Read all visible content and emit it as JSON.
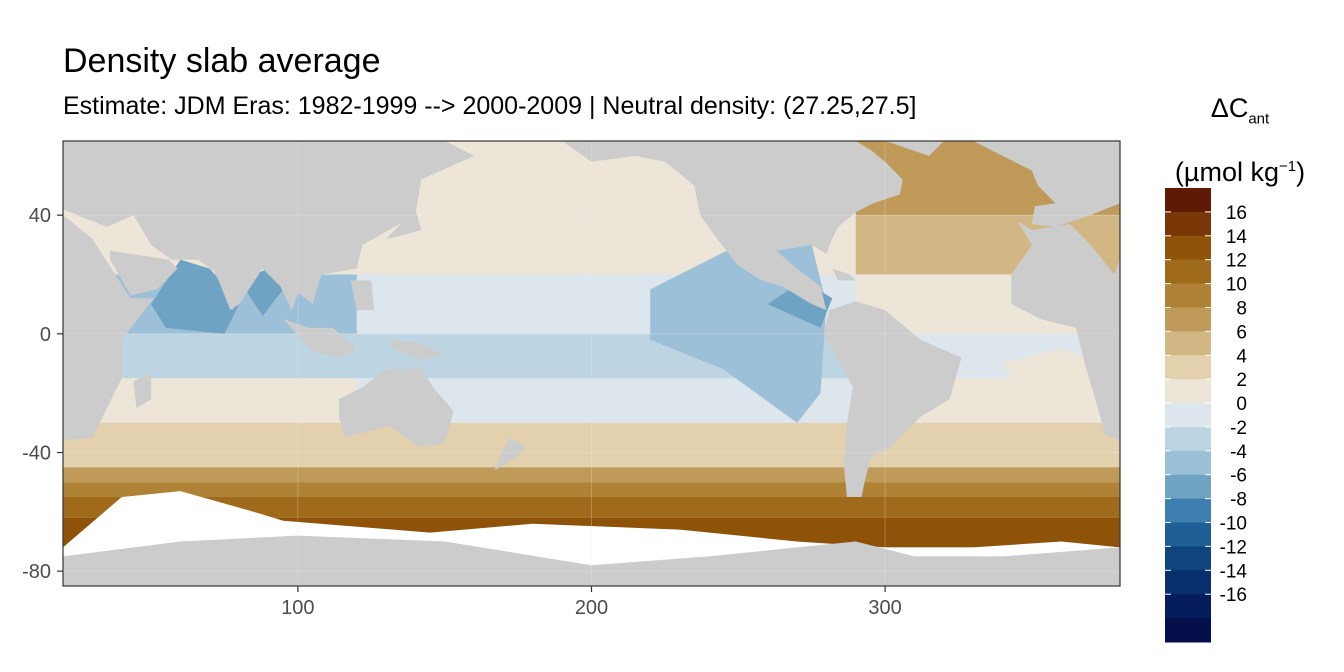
{
  "chart_data": {
    "type": "heatmap",
    "title": "Density slab average",
    "subtitle": "Estimate: JDM Eras: 1982-1999 --> 2000-2009 | Neutral density: (27.25,27.5]",
    "xlabel": "",
    "ylabel": "",
    "xlim": [
      20,
      380
    ],
    "ylim": [
      -85,
      65
    ],
    "x_ticks": [
      100,
      200,
      300
    ],
    "x_tick_labels": [
      "100",
      "200",
      "300"
    ],
    "y_ticks": [
      40,
      0,
      -40,
      -80
    ],
    "y_tick_labels": [
      "40",
      "0",
      "-40",
      "-80"
    ],
    "grid": true,
    "legend": {
      "position": "right",
      "title_main": "ΔC",
      "title_sub": "ant",
      "unit_prefix": "(µmol kg",
      "unit_sup": "−1",
      "unit_suffix": ")",
      "labels": [
        "16",
        "14",
        "12",
        "10",
        "8",
        "6",
        "4",
        "2",
        "0",
        "-2",
        "-4",
        "-6",
        "-8",
        "-10",
        "-12",
        "-14",
        "-16"
      ],
      "colors": [
        "#5e1a05",
        "#7a3606",
        "#8e5208",
        "#9f6a1a",
        "#b08236",
        "#c09a58",
        "#d2b684",
        "#e3d1ae",
        "#ede6d8",
        "#dce6ec",
        "#bdd5e3",
        "#9cc0d8",
        "#6fa3c4",
        "#3d7fae",
        "#1d5f96",
        "#0f457f",
        "#082f6e",
        "#061d5c",
        "#040f4a"
      ]
    },
    "land_color": "#cccccc",
    "missing_color": "#ffffff",
    "zonal_bands": [
      {
        "lat_range": [
          40,
          65
        ],
        "pacific": 2,
        "atlantic": 8
      },
      {
        "lat_range": [
          20,
          40
        ],
        "pacific": 2,
        "atlantic": 6
      },
      {
        "lat_range": [
          0,
          20
        ],
        "pacific": 0,
        "atlantic": 2,
        "indian": -4
      },
      {
        "lat_range": [
          -15,
          0
        ],
        "pacific": -2,
        "atlantic": 0,
        "indian": -2
      },
      {
        "lat_range": [
          -30,
          -15
        ],
        "pacific": 0,
        "atlantic": 2,
        "indian": 2
      },
      {
        "lat_range": [
          -45,
          -30
        ],
        "all": 4
      },
      {
        "lat_range": [
          -50,
          -45
        ],
        "all": 8
      },
      {
        "lat_range": [
          -55,
          -50
        ],
        "all": 10
      },
      {
        "lat_range": [
          -62,
          -55
        ],
        "all": 12
      },
      {
        "lat_range": [
          -72,
          -62
        ],
        "all": 14
      }
    ]
  }
}
